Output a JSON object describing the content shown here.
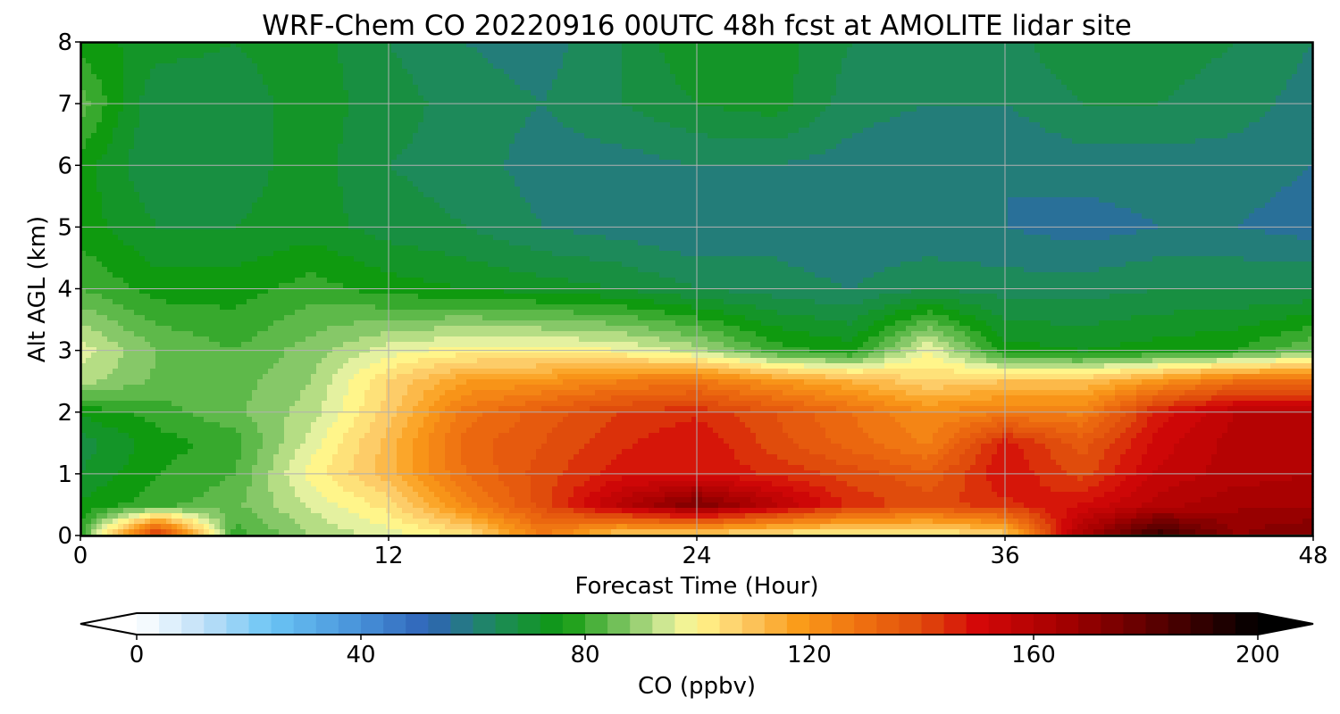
{
  "chart_data": {
    "type": "heatmap",
    "title": "WRF-Chem CO  20220916 00UTC 48h fcst at AMOLITE lidar site",
    "xlabel": "Forecast Time (Hour)",
    "ylabel": "Alt AGL (km)",
    "xlim": [
      0,
      48
    ],
    "ylim": [
      0,
      8
    ],
    "xticks": [
      "0",
      "12",
      "24",
      "36",
      "48"
    ],
    "yticks": [
      "0",
      "1",
      "2",
      "3",
      "4",
      "5",
      "6",
      "7",
      "8"
    ],
    "grid": true,
    "x": [
      0,
      3,
      6,
      9,
      12,
      15,
      18,
      21,
      24,
      27,
      30,
      33,
      36,
      39,
      42,
      45,
      48
    ],
    "y": [
      0,
      0.5,
      1,
      1.5,
      2,
      2.5,
      3,
      4,
      5,
      6,
      7,
      8
    ],
    "z": [
      [
        80,
        150,
        80,
        90,
        96,
        102,
        126,
        106,
        104,
        100,
        98,
        98,
        106,
        165,
        190,
        170,
        175
      ],
      [
        75,
        80,
        85,
        95,
        104,
        124,
        140,
        160,
        175,
        160,
        145,
        140,
        145,
        150,
        160,
        165,
        165
      ],
      [
        70,
        78,
        82,
        100,
        112,
        130,
        140,
        148,
        150,
        145,
        140,
        135,
        150,
        140,
        155,
        160,
        162
      ],
      [
        68,
        76,
        80,
        96,
        112,
        132,
        138,
        145,
        150,
        140,
        132,
        125,
        148,
        136,
        152,
        160,
        160
      ],
      [
        75,
        80,
        85,
        92,
        108,
        128,
        136,
        142,
        145,
        138,
        130,
        122,
        126,
        125,
        148,
        158,
        158
      ],
      [
        92,
        85,
        84,
        90,
        106,
        118,
        120,
        126,
        128,
        120,
        114,
        106,
        110,
        110,
        120,
        130,
        130
      ],
      [
        96,
        86,
        82,
        88,
        96,
        100,
        100,
        98,
        92,
        80,
        76,
        98,
        76,
        74,
        76,
        78,
        86
      ],
      [
        82,
        76,
        76,
        80,
        76,
        74,
        72,
        70,
        66,
        64,
        62,
        66,
        64,
        64,
        66,
        66,
        66
      ],
      [
        76,
        70,
        70,
        72,
        68,
        66,
        62,
        60,
        58,
        60,
        58,
        58,
        58,
        56,
        58,
        58,
        56
      ],
      [
        76,
        66,
        68,
        72,
        66,
        64,
        60,
        60,
        62,
        62,
        60,
        58,
        58,
        60,
        60,
        60,
        58
      ],
      [
        84,
        66,
        68,
        72,
        68,
        64,
        62,
        66,
        70,
        72,
        64,
        62,
        62,
        66,
        66,
        64,
        60
      ],
      [
        76,
        72,
        70,
        72,
        66,
        62,
        60,
        66,
        74,
        72,
        66,
        64,
        64,
        70,
        68,
        66,
        62
      ]
    ],
    "colorbar": {
      "label": "CO  (ppbv)",
      "min": 0,
      "max": 200,
      "ticks": [
        "0",
        "40",
        "80",
        "120",
        "160",
        "200"
      ],
      "extend": "both",
      "orientation": "horizontal",
      "stops": [
        {
          "v": 0,
          "c": "#ffffff"
        },
        {
          "v": 12,
          "c": "#bfe0f8"
        },
        {
          "v": 24,
          "c": "#6ac4f4"
        },
        {
          "v": 40,
          "c": "#4790d8"
        },
        {
          "v": 52,
          "c": "#2f63b8"
        },
        {
          "v": 64,
          "c": "#1d8a5a"
        },
        {
          "v": 76,
          "c": "#0f9a0f"
        },
        {
          "v": 88,
          "c": "#86c868"
        },
        {
          "v": 96,
          "c": "#e4f1a0"
        },
        {
          "v": 100,
          "c": "#fff58a"
        },
        {
          "v": 108,
          "c": "#fdcc68"
        },
        {
          "v": 118,
          "c": "#fa9c1a"
        },
        {
          "v": 130,
          "c": "#ee6e10"
        },
        {
          "v": 140,
          "c": "#e04c0c"
        },
        {
          "v": 150,
          "c": "#d40808"
        },
        {
          "v": 165,
          "c": "#a60000"
        },
        {
          "v": 180,
          "c": "#620000"
        },
        {
          "v": 192,
          "c": "#280000"
        },
        {
          "v": 200,
          "c": "#000000"
        }
      ]
    }
  }
}
